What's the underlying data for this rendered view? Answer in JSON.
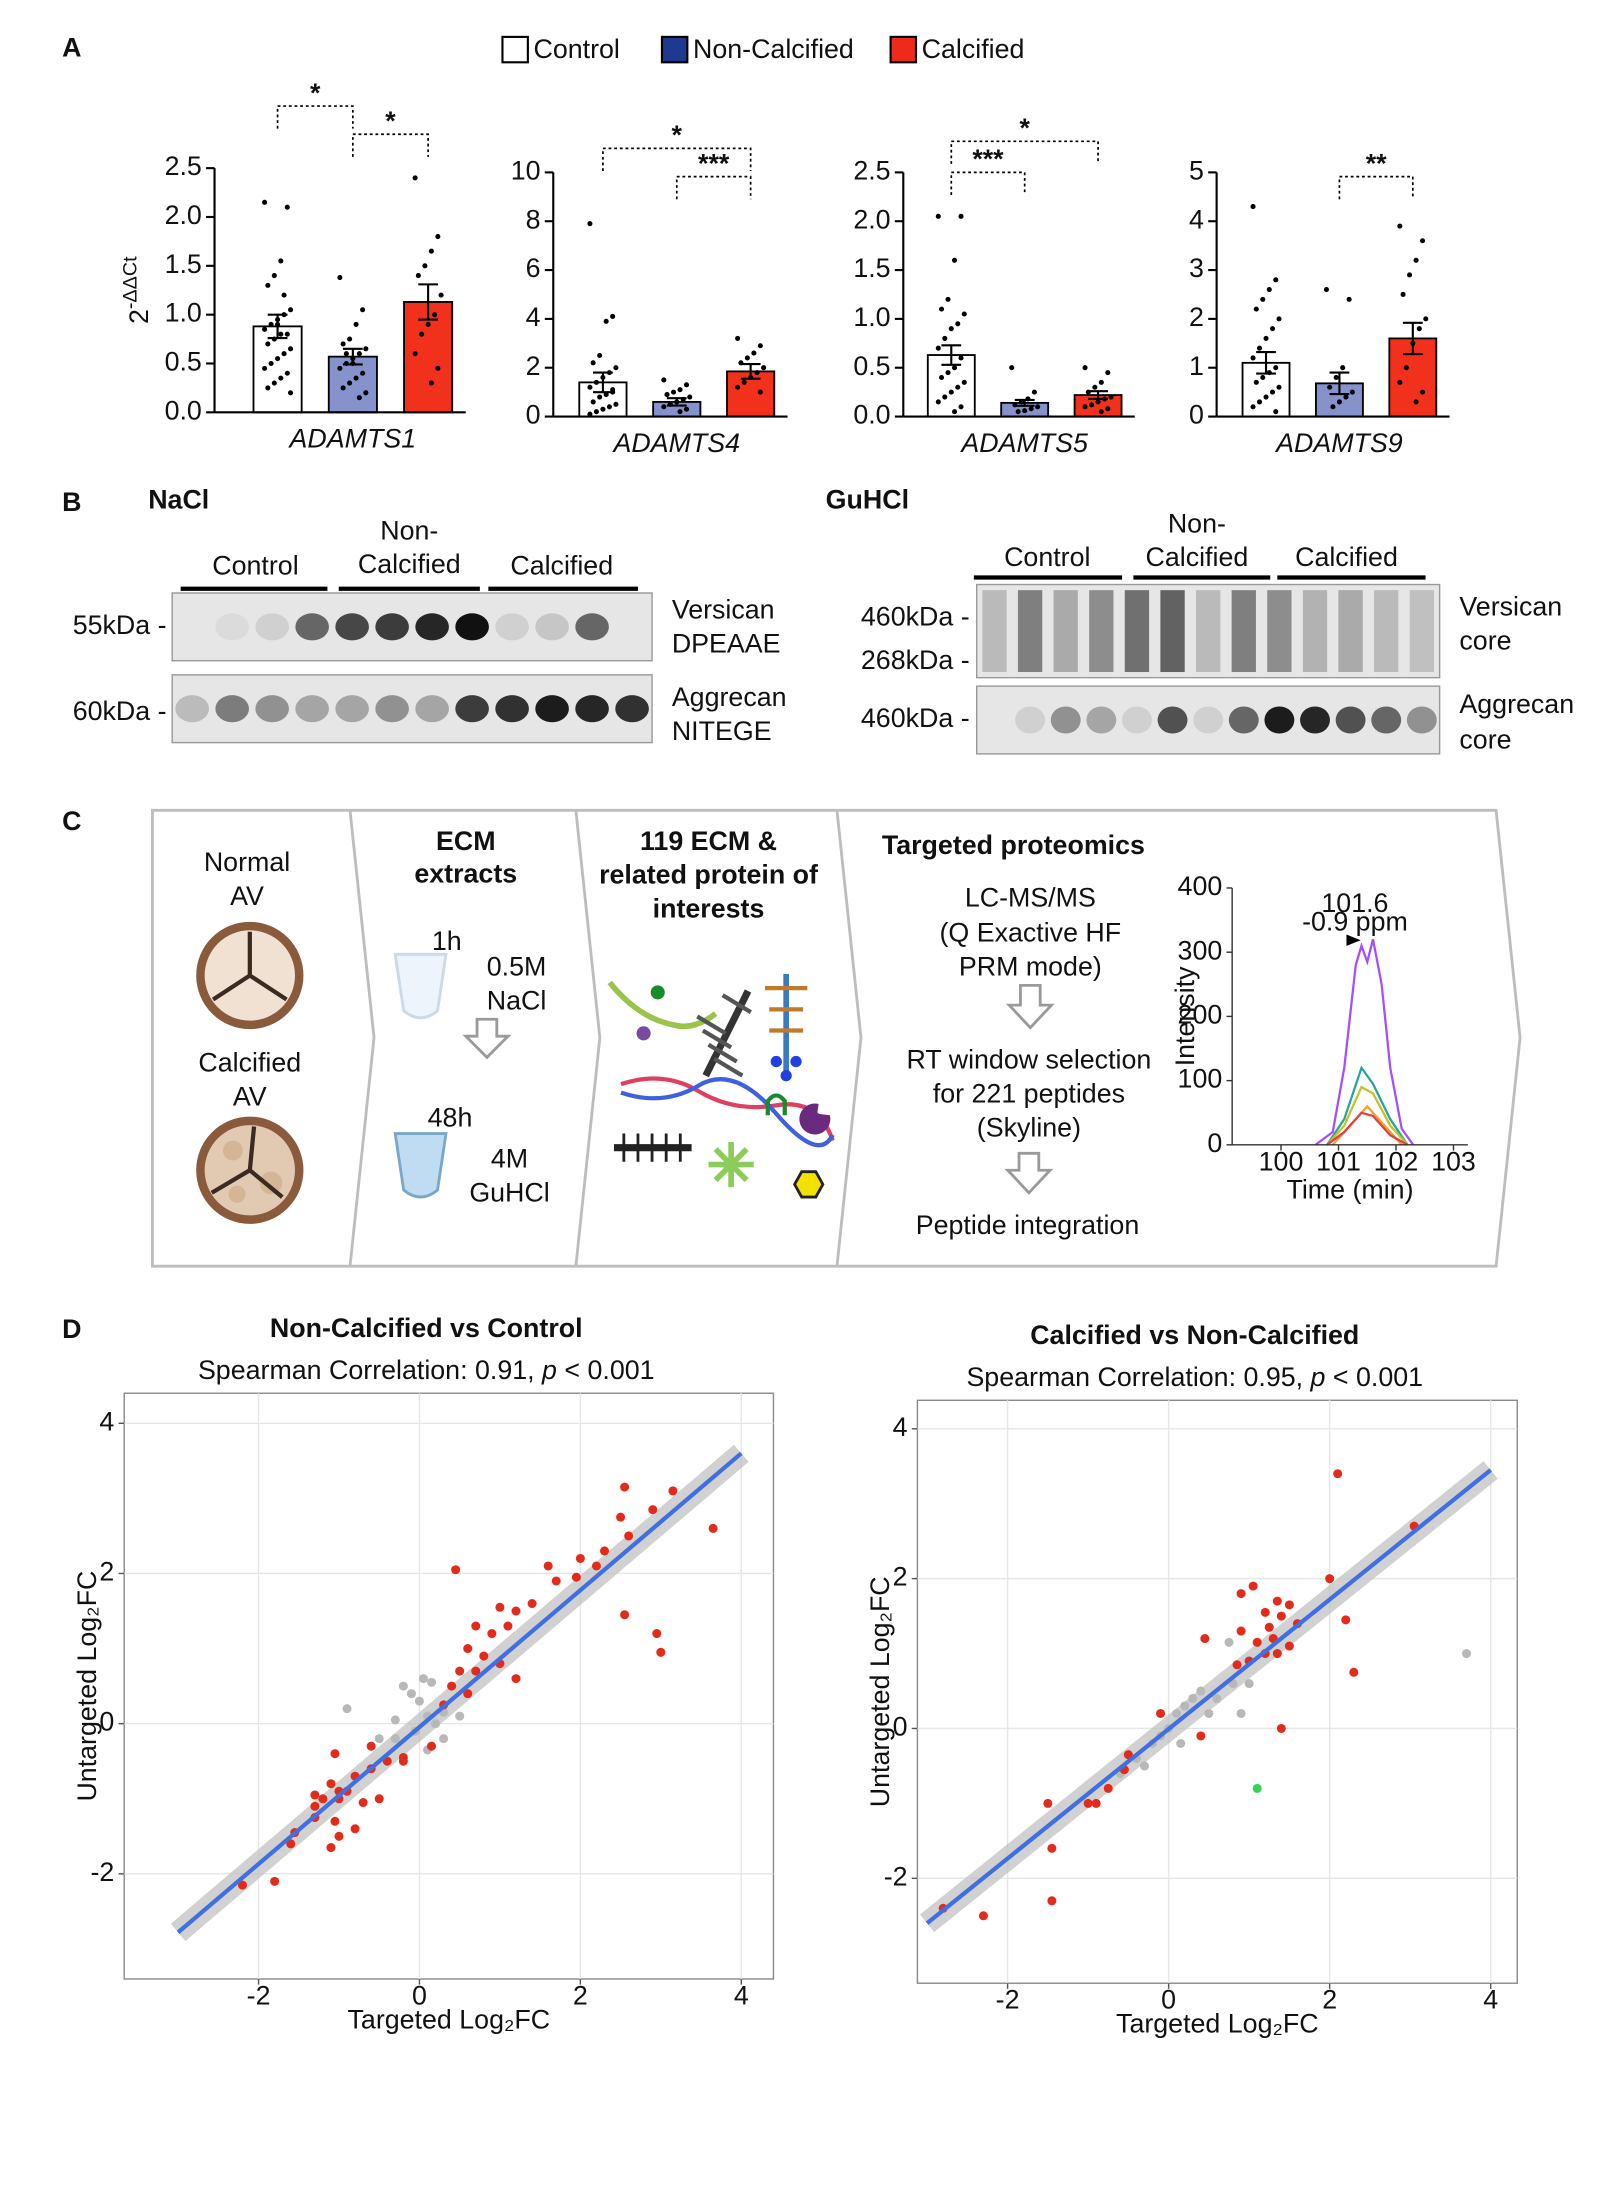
{
  "panel_labels": [
    "A",
    "B",
    "C",
    "D"
  ],
  "legend": [
    {
      "name": "Control",
      "color": "#ffffff"
    },
    {
      "name": "Non-Calcified",
      "color": "#1d3a8f"
    },
    {
      "name": "Calcified",
      "color": "#ee2a1b"
    }
  ],
  "chart_data": [
    {
      "type": "bar",
      "categories": [
        "ADAMTS1"
      ],
      "ylabel": {
        "base": "2",
        "sup": "-ΔΔCt"
      },
      "ylim": [
        0,
        2.5
      ],
      "yticks": [
        {
          "value": 0,
          "label": "0.0"
        },
        0.5,
        {
          "value": 1,
          "label": "1.0"
        },
        1.5,
        {
          "value": 2,
          "label": "2.0"
        },
        2.5
      ],
      "annotations": [
        "*",
        "*"
      ],
      "series": [
        {
          "color": "#ffffff",
          "values": [
            0.88
          ],
          "errors": [
            0.12
          ],
          "points": [
            2.15,
            2.1,
            1.55,
            1.4,
            1.3,
            1.05,
            1.0,
            0.95,
            0.9,
            0.85,
            0.8,
            0.8,
            0.75,
            0.7,
            0.65,
            0.6,
            0.55,
            0.5,
            0.45,
            0.4,
            0.35,
            0.3,
            0.25,
            0.2,
            1.2,
            0.9
          ]
        },
        {
          "color": "#8592cb",
          "values": [
            0.57
          ],
          "errors": [
            0.08
          ],
          "points": [
            1.38,
            1.05,
            0.9,
            0.75,
            0.7,
            0.65,
            0.6,
            0.55,
            0.5,
            0.45,
            0.4,
            0.35,
            0.3,
            0.25,
            0.2,
            0.15,
            0.5,
            0.6
          ]
        },
        {
          "color": "#f2311d",
          "values": [
            1.13
          ],
          "errors": [
            0.18
          ],
          "points": [
            2.4,
            1.8,
            1.65,
            1.5,
            1.4,
            1.2,
            1.0,
            0.9,
            0.8,
            0.6,
            0.45,
            0.3
          ]
        }
      ]
    },
    {
      "type": "bar",
      "categories": [
        "ADAMTS4"
      ],
      "ylim": [
        0,
        10
      ],
      "yticks": [
        0,
        2,
        4,
        6,
        8,
        10
      ],
      "annotations": [
        "*",
        "***"
      ],
      "series": [
        {
          "color": "#ffffff",
          "values": [
            1.4
          ],
          "errors": [
            0.4
          ],
          "points": [
            7.9,
            4.1,
            3.9,
            2.5,
            2.2,
            2.0,
            1.8,
            1.6,
            1.4,
            1.2,
            1.0,
            0.9,
            0.8,
            0.6,
            0.5,
            0.4,
            0.3,
            0.2,
            0.1,
            1.1
          ]
        },
        {
          "color": "#8592cb",
          "values": [
            0.6
          ],
          "errors": [
            0.15
          ],
          "points": [
            1.5,
            1.3,
            1.1,
            1.0,
            0.9,
            0.8,
            0.7,
            0.6,
            0.5,
            0.4,
            0.3,
            0.2
          ]
        },
        {
          "color": "#f2311d",
          "values": [
            1.85
          ],
          "errors": [
            0.3
          ],
          "points": [
            3.2,
            2.9,
            2.6,
            2.4,
            2.2,
            2.0,
            1.8,
            1.6,
            1.4,
            1.2,
            1.0
          ]
        }
      ]
    },
    {
      "type": "bar",
      "categories": [
        "ADAMTS5"
      ],
      "ylim": [
        0,
        2.5
      ],
      "yticks": [
        {
          "value": 0,
          "label": "0.0"
        },
        0.5,
        {
          "value": 1,
          "label": "1.0"
        },
        1.5,
        {
          "value": 2,
          "label": "2.0"
        },
        2.5
      ],
      "annotations": [
        "*",
        "***"
      ],
      "series": [
        {
          "color": "#ffffff",
          "values": [
            0.63
          ],
          "errors": [
            0.1
          ],
          "points": [
            2.05,
            2.05,
            1.6,
            1.2,
            1.1,
            1.05,
            0.95,
            0.9,
            0.8,
            0.7,
            0.6,
            0.5,
            0.45,
            0.4,
            0.35,
            0.3,
            0.25,
            0.2,
            0.15,
            0.1,
            0.05
          ]
        },
        {
          "color": "#8592cb",
          "values": [
            0.14
          ],
          "errors": [
            0.03
          ],
          "points": [
            0.5,
            0.25,
            0.18,
            0.15,
            0.12,
            0.1,
            0.08,
            0.06,
            0.05
          ]
        },
        {
          "color": "#f2311d",
          "values": [
            0.22
          ],
          "errors": [
            0.04
          ],
          "points": [
            0.5,
            0.45,
            0.35,
            0.3,
            0.25,
            0.2,
            0.18,
            0.15,
            0.12,
            0.1,
            0.08,
            0.05
          ]
        }
      ]
    },
    {
      "type": "bar",
      "categories": [
        "ADAMTS9"
      ],
      "ylim": [
        0,
        5
      ],
      "yticks": [
        0,
        1,
        2,
        3,
        4,
        5
      ],
      "annotations": [
        "**"
      ],
      "series": [
        {
          "color": "#ffffff",
          "values": [
            1.1
          ],
          "errors": [
            0.22
          ],
          "points": [
            4.3,
            2.8,
            2.6,
            2.4,
            2.2,
            2.0,
            1.8,
            1.6,
            1.4,
            1.2,
            1.0,
            0.9,
            0.8,
            0.7,
            0.6,
            0.5,
            0.4,
            0.3,
            0.2,
            0.1
          ]
        },
        {
          "color": "#8592cb",
          "values": [
            0.68
          ],
          "errors": [
            0.22
          ],
          "points": [
            2.6,
            2.4,
            1.0,
            0.8,
            0.6,
            0.5,
            0.4,
            0.3,
            0.2
          ]
        },
        {
          "color": "#f2311d",
          "values": [
            1.6
          ],
          "errors": [
            0.32
          ],
          "points": [
            3.9,
            3.6,
            3.2,
            2.9,
            2.5,
            2.0,
            1.8,
            1.5,
            1.0,
            0.7,
            0.5,
            0.3
          ]
        }
      ]
    },
    {
      "type": "scatter",
      "title": "Non-Calcified vs Control",
      "subtitle": [
        "Spearman Correlation: 0.91, ",
        "p",
        " < 0.001"
      ],
      "xlabel": "Targeted Log₂FC",
      "ylabel": "Untargeted Log₂FC",
      "xlim": [
        -3.67,
        4.4
      ],
      "ylim": [
        -3.4,
        4.4
      ],
      "xticks": [
        -2,
        0,
        2,
        4
      ],
      "yticks": [
        -2,
        0,
        2,
        4
      ],
      "grid": true,
      "series": [
        {
          "color": "#b8b8b8",
          "x": [
            -0.9,
            -0.2,
            -0.1,
            0.0,
            0.1,
            -0.05,
            0.2,
            0.3,
            0.1,
            0.5,
            -0.3,
            0.05,
            -0.3,
            0.3,
            0.15,
            -0.5
          ],
          "y": [
            0.2,
            0.5,
            0.4,
            0.3,
            0.1,
            -0.1,
            0.0,
            -0.2,
            -0.35,
            0.1,
            0.05,
            0.6,
            -0.2,
            0.15,
            0.55,
            -0.2
          ]
        },
        {
          "color": "#e32b1b",
          "x": [
            2.55,
            3.15,
            3.65,
            2.5,
            2.6,
            2.9,
            2.0,
            2.3,
            1.95,
            1.7,
            1.6,
            2.2,
            2.95,
            3.0,
            2.55,
            1.4,
            1.2,
            1.0,
            1.1,
            0.9,
            0.45,
            0.7,
            0.6,
            0.8,
            1.0,
            0.5,
            0.4,
            0.7,
            1.2,
            0.6,
            0.3,
            0.15,
            -0.2,
            -0.4,
            -0.6,
            -0.8,
            -0.9,
            -1.0,
            -0.7,
            -1.1,
            -1.2,
            -1.3,
            -1.05,
            -1.0,
            -0.8,
            -1.1,
            -1.3,
            -1.6,
            -1.55,
            -1.3,
            -1.0,
            -0.6,
            -0.5,
            -1.8,
            -2.2,
            -1.05,
            -0.2
          ],
          "y": [
            3.15,
            3.1,
            2.6,
            2.75,
            2.5,
            2.85,
            2.2,
            2.3,
            1.95,
            1.9,
            2.1,
            2.1,
            1.2,
            0.95,
            1.45,
            1.6,
            1.5,
            1.55,
            1.3,
            1.2,
            2.05,
            1.3,
            1.0,
            0.9,
            0.8,
            0.7,
            0.5,
            0.7,
            0.6,
            0.4,
            0.25,
            -0.3,
            -0.45,
            -0.5,
            -0.6,
            -0.7,
            -0.9,
            -1.0,
            -1.05,
            -0.8,
            -1.0,
            -1.1,
            -1.3,
            -1.5,
            -1.4,
            -1.65,
            -1.25,
            -1.6,
            -1.45,
            -0.95,
            -0.9,
            -0.3,
            -1.0,
            -2.1,
            -2.15,
            -0.4,
            -0.5
          ]
        }
      ],
      "fit": {
        "color": "#3f6fe0",
        "x": [
          -3,
          4
        ],
        "y": [
          -2.78,
          3.6
        ]
      }
    },
    {
      "type": "scatter",
      "title": "Calcified vs Non-Calcified",
      "subtitle": [
        "Spearman Correlation: 0.95, ",
        "p",
        " < 0.001"
      ],
      "xlabel": "Targeted Log₂FC",
      "ylabel": "Untargeted Log₂FC",
      "xlim": [
        -3.12,
        4.33
      ],
      "ylim": [
        -3.4,
        4.38
      ],
      "xticks": [
        -2,
        0,
        2,
        4
      ],
      "yticks": [
        -2,
        0,
        2,
        4
      ],
      "grid": true,
      "series": [
        {
          "color": "#b8b8b8",
          "x": [
            3.7,
            0.75,
            0.5,
            0.3,
            0.0,
            -0.2,
            -0.4,
            0.1,
            -0.1,
            0.2,
            0.4,
            0.6,
            0.8,
            -0.3,
            0.9,
            1.0,
            -0.6,
            0.15
          ],
          "y": [
            1.0,
            1.15,
            0.2,
            0.4,
            0.0,
            -0.2,
            -0.4,
            0.2,
            -0.1,
            0.3,
            0.5,
            0.4,
            0.6,
            -0.5,
            0.2,
            0.6,
            -0.6,
            -0.2
          ]
        },
        {
          "color": "#e32b1b",
          "x": [
            2.1,
            3.05,
            2.2,
            2.3,
            2.0,
            1.05,
            0.9,
            1.35,
            1.5,
            1.2,
            1.4,
            1.6,
            1.25,
            1.3,
            1.1,
            1.5,
            1.35,
            0.85,
            1.0,
            0.45,
            0.9,
            1.2,
            1.4,
            0.4,
            -0.5,
            -0.55,
            -1.0,
            -0.9,
            -0.75,
            -1.5,
            -1.45,
            -1.45,
            -2.3,
            -2.8,
            -0.1
          ],
          "y": [
            3.4,
            2.7,
            1.45,
            0.75,
            2.0,
            1.9,
            1.8,
            1.7,
            1.65,
            1.55,
            1.5,
            1.4,
            1.35,
            1.2,
            1.15,
            1.1,
            1.0,
            0.85,
            0.9,
            1.2,
            1.3,
            1.0,
            0.0,
            -0.1,
            -0.35,
            -0.55,
            -1.0,
            -1.0,
            -0.8,
            -1.0,
            -1.6,
            -2.3,
            -2.5,
            -2.4,
            0.2
          ]
        },
        {
          "color": "#39d353",
          "x": [
            1.1
          ],
          "y": [
            -0.8
          ]
        }
      ],
      "fit": {
        "color": "#3f6fe0",
        "x": [
          -3,
          4
        ],
        "y": [
          -2.6,
          3.45
        ]
      }
    },
    {
      "type": "line",
      "xlabel": "Time (min)",
      "ylabel": "Intensity",
      "xlim": [
        99.15,
        103.25
      ],
      "ylim": [
        0,
        400
      ],
      "xticks": [
        100,
        101,
        102,
        103
      ],
      "yticks": [
        0,
        100,
        200,
        300,
        400
      ],
      "annotations": [
        "101.6",
        "-0.9 ppm"
      ],
      "annotation_color": "#a64dff",
      "series": [
        {
          "color": "#2aa39a",
          "x": [
            100.8,
            101.1,
            101.4,
            101.6,
            101.9,
            102.2
          ],
          "values": [
            0,
            40,
            120,
            95,
            40,
            0
          ]
        },
        {
          "color": "#c2c22a",
          "x": [
            100.8,
            101.1,
            101.4,
            101.6,
            101.9,
            102.2
          ],
          "values": [
            0,
            30,
            90,
            80,
            30,
            0
          ]
        },
        {
          "color": "#f0a030",
          "x": [
            100.9,
            101.2,
            101.5,
            101.8,
            102.1
          ],
          "values": [
            0,
            30,
            60,
            30,
            0
          ]
        },
        {
          "color": "#e04040",
          "x": [
            100.8,
            101.1,
            101.4,
            101.6,
            101.9,
            102.2
          ],
          "values": [
            0,
            20,
            50,
            45,
            15,
            0
          ]
        },
        {
          "color": "#a64dff",
          "x": [
            100.6,
            100.9,
            101.1,
            101.3,
            101.4,
            101.5,
            101.6,
            101.75,
            101.9,
            102.1,
            102.3
          ],
          "values": [
            0,
            20,
            120,
            280,
            310,
            285,
            320,
            250,
            120,
            25,
            0
          ]
        }
      ]
    }
  ],
  "panel_b": {
    "blots": [
      {
        "title": "NaCl",
        "groups": [
          [
            "Control"
          ],
          [
            "Non-",
            "Calcified"
          ],
          [
            "Calcified"
          ]
        ],
        "markers": [
          "55kDa -",
          "60kDa -"
        ],
        "proteins": [
          [
            "Versican",
            "DPEAAE"
          ],
          [
            "Aggrecan",
            "NITEGE"
          ]
        ]
      },
      {
        "title": "GuHCl",
        "groups": [
          [
            "Control"
          ],
          [
            "Non-",
            "Calcified"
          ],
          [
            "Calcified"
          ]
        ],
        "markers": [
          "460kDa -",
          "268kDa -",
          "460kDa -"
        ],
        "proteins": [
          [
            "Versican",
            "core"
          ],
          [
            "Aggrecan",
            "core"
          ]
        ]
      }
    ]
  },
  "panel_c": {
    "samples": [
      [
        "Normal",
        "AV"
      ],
      [
        "Calcified",
        "AV"
      ]
    ],
    "extraction": {
      "title": [
        "ECM",
        "extracts"
      ],
      "steps": [
        {
          "time": "1h",
          "buffer": [
            "0.5M",
            "NaCl"
          ]
        },
        {
          "time": "48h",
          "buffer": [
            "4M",
            "GuHCl"
          ]
        }
      ]
    },
    "targets": [
      "119 ECM &",
      "related protein of",
      "interests"
    ],
    "proteomics": {
      "title": "Targeted proteomics",
      "steps": [
        [
          "LC-MS/MS",
          "(Q Exactive HF",
          "PRM mode)"
        ],
        [
          "RT window selection",
          "for 221 peptides",
          "(Skyline)"
        ],
        [
          "Peptide integration"
        ]
      ]
    }
  }
}
